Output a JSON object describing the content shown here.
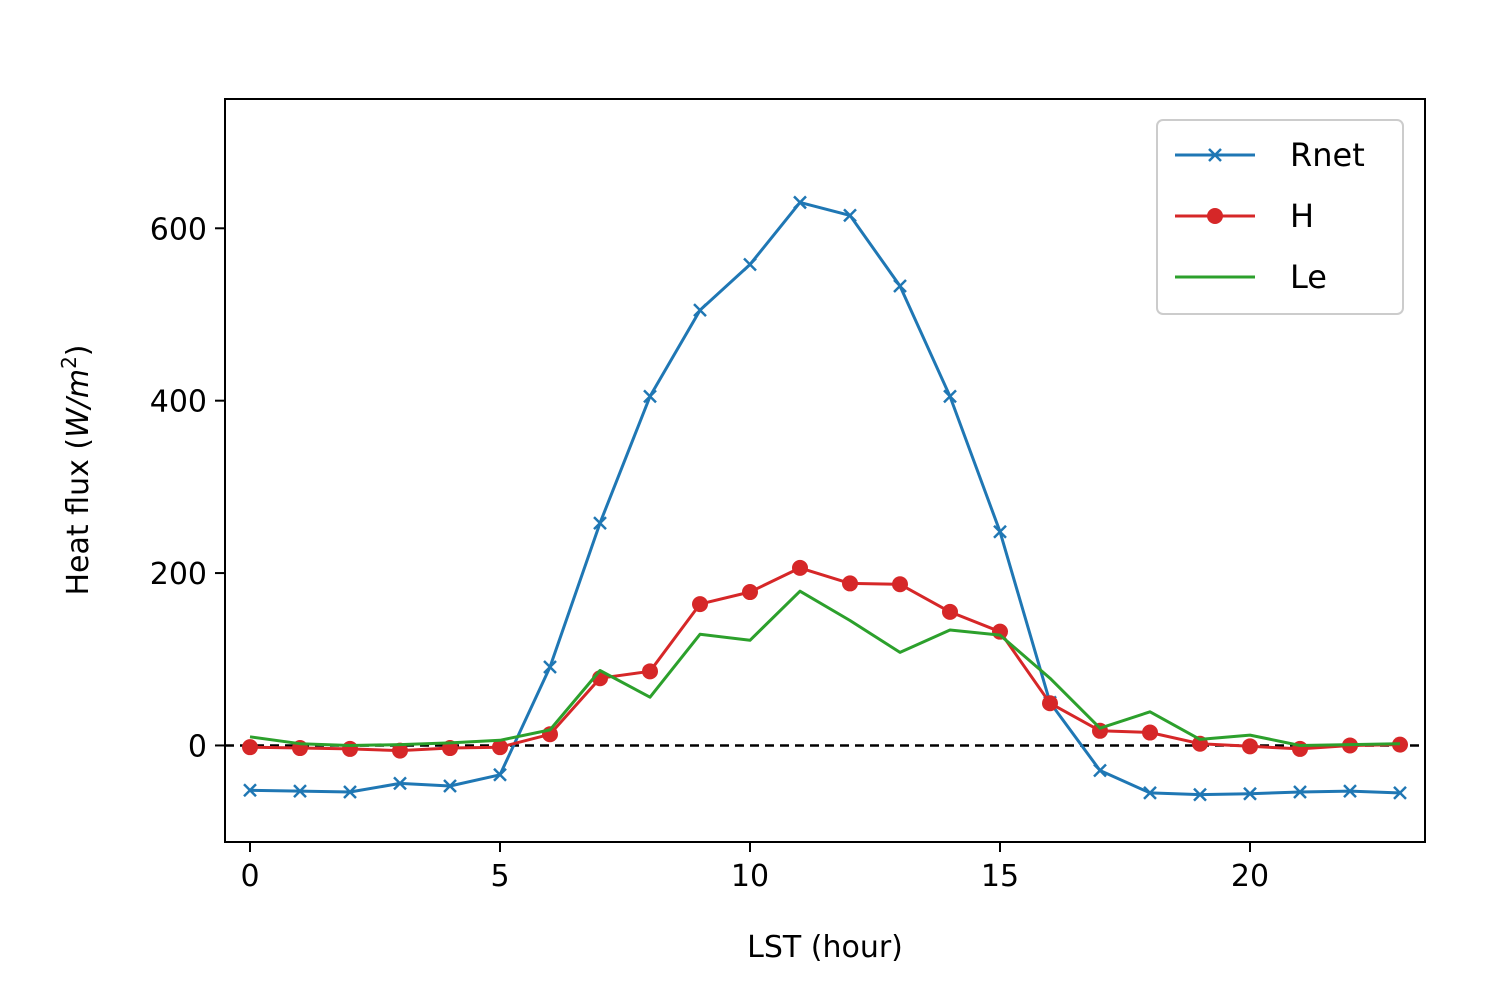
{
  "chart_data": {
    "type": "line",
    "xlabel": "LST (hour)",
    "ylabel_main": "Heat flux (",
    "ylabel_unit": "W/m",
    "ylabel_sup": "2",
    "ylabel_close": ")",
    "xlim": [
      -0.5,
      23.5
    ],
    "ylim": [
      -112,
      750
    ],
    "xticks": [
      0,
      5,
      10,
      15,
      20
    ],
    "yticks": [
      0,
      200,
      400,
      600
    ],
    "grid": false,
    "reference_line": {
      "y": 0,
      "style": "dashed",
      "color": "#000000"
    },
    "legend_position": "top-right",
    "x": [
      0,
      1,
      2,
      3,
      4,
      5,
      6,
      7,
      8,
      9,
      10,
      11,
      12,
      13,
      14,
      15,
      16,
      17,
      18,
      19,
      20,
      21,
      22,
      23
    ],
    "series": [
      {
        "name": "Rnet",
        "color": "#1f77b4",
        "marker": "x",
        "values": [
          -52,
          -53,
          -54,
          -44,
          -47,
          -34,
          91,
          258,
          405,
          505,
          558,
          630,
          615,
          533,
          405,
          248,
          50,
          -29,
          -55,
          -57,
          -56,
          -54,
          -53,
          -55
        ]
      },
      {
        "name": "H",
        "color": "#d62728",
        "marker": "circle",
        "values": [
          -2,
          -3,
          -4,
          -6,
          -3,
          -2,
          13,
          78,
          86,
          164,
          178,
          206,
          188,
          187,
          155,
          132,
          49,
          17,
          15,
          2,
          -1,
          -4,
          0,
          1
        ]
      },
      {
        "name": "Le",
        "color": "#2ca02c",
        "marker": "none",
        "values": [
          10,
          2,
          0,
          1,
          3,
          6,
          18,
          87,
          56,
          129,
          122,
          179,
          145,
          108,
          134,
          128,
          78,
          20,
          39,
          7,
          12,
          0,
          1,
          2
        ]
      }
    ]
  }
}
